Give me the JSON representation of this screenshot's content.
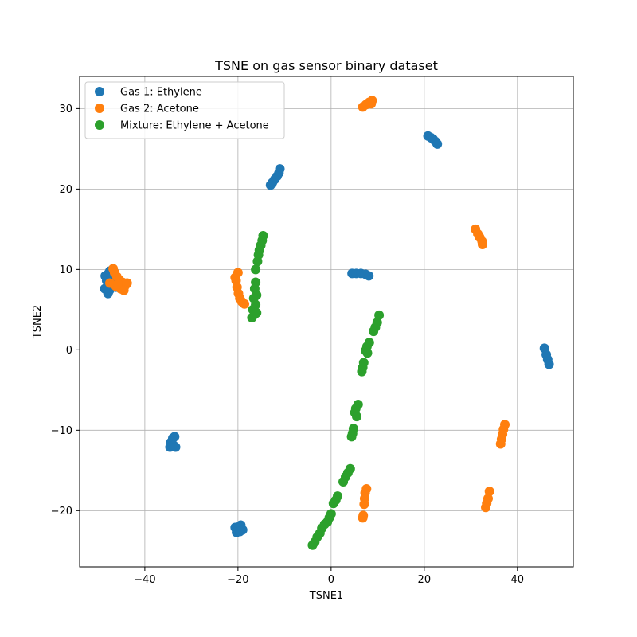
{
  "chart_data": {
    "type": "scatter",
    "title": "TSNE on gas sensor binary dataset",
    "xlabel": "TSNE1",
    "ylabel": "TSNE2",
    "xlim": [
      -54,
      52
    ],
    "ylim": [
      -27,
      34
    ],
    "xticks": [
      -40,
      -20,
      0,
      20,
      40
    ],
    "yticks": [
      -20,
      -10,
      0,
      10,
      20,
      30
    ],
    "grid": true,
    "legend_position": "top-left",
    "series": [
      {
        "name": "Gas 1: Ethylene",
        "color": "#1f77b4",
        "points": [
          [
            -48.5,
            9.2
          ],
          [
            -47.8,
            9.5
          ],
          [
            -47.5,
            9.8
          ],
          [
            -48.2,
            8.6
          ],
          [
            -48.0,
            8.0
          ],
          [
            -47.6,
            7.4
          ],
          [
            -47.9,
            7.0
          ],
          [
            -48.6,
            7.6
          ],
          [
            -46.8,
            8.2
          ],
          [
            -47.2,
            9.0
          ],
          [
            -46.5,
            9.6
          ],
          [
            -46.2,
            7.8
          ],
          [
            -11.0,
            22.5
          ],
          [
            -11.2,
            22.0
          ],
          [
            -11.6,
            21.6
          ],
          [
            -12.1,
            21.2
          ],
          [
            -12.6,
            20.8
          ],
          [
            -13.0,
            20.5
          ],
          [
            20.8,
            26.6
          ],
          [
            21.4,
            26.4
          ],
          [
            21.9,
            26.2
          ],
          [
            22.4,
            25.9
          ],
          [
            22.8,
            25.6
          ],
          [
            4.5,
            9.5
          ],
          [
            5.4,
            9.5
          ],
          [
            6.4,
            9.5
          ],
          [
            7.4,
            9.4
          ],
          [
            8.1,
            9.2
          ],
          [
            45.8,
            0.2
          ],
          [
            46.2,
            -0.6
          ],
          [
            46.5,
            -1.2
          ],
          [
            46.8,
            -1.8
          ],
          [
            -34.0,
            -11.0
          ],
          [
            -34.4,
            -11.5
          ],
          [
            -33.8,
            -11.9
          ],
          [
            -33.4,
            -12.1
          ],
          [
            -34.6,
            -12.1
          ],
          [
            -33.6,
            -10.8
          ],
          [
            -20.6,
            -22.1
          ],
          [
            -20.0,
            -22.4
          ],
          [
            -19.4,
            -21.8
          ],
          [
            -19.0,
            -22.4
          ],
          [
            -20.3,
            -22.7
          ],
          [
            -19.6,
            -22.6
          ]
        ]
      },
      {
        "name": "Gas 2: Acetone",
        "color": "#ff7f0e",
        "points": [
          [
            -46.8,
            10.1
          ],
          [
            -46.5,
            9.6
          ],
          [
            -46.0,
            9.1
          ],
          [
            -45.5,
            8.7
          ],
          [
            -44.8,
            8.4
          ],
          [
            -44.2,
            8.0
          ],
          [
            -43.8,
            8.3
          ],
          [
            -44.5,
            7.4
          ],
          [
            -45.2,
            7.6
          ],
          [
            -46.2,
            7.9
          ],
          [
            -47.5,
            8.3
          ],
          [
            -45.8,
            8.2
          ],
          [
            6.8,
            30.2
          ],
          [
            7.5,
            30.5
          ],
          [
            8.2,
            30.8
          ],
          [
            8.8,
            31.0
          ],
          [
            8.6,
            30.6
          ],
          [
            31.0,
            15.0
          ],
          [
            31.5,
            14.4
          ],
          [
            31.9,
            14.0
          ],
          [
            32.4,
            13.5
          ],
          [
            32.5,
            13.1
          ],
          [
            -20.0,
            9.6
          ],
          [
            -20.4,
            8.6
          ],
          [
            -20.2,
            7.8
          ],
          [
            -19.9,
            7.0
          ],
          [
            -19.6,
            6.4
          ],
          [
            -19.2,
            6.0
          ],
          [
            -18.6,
            5.7
          ],
          [
            -20.6,
            9.0
          ],
          [
            37.3,
            -9.3
          ],
          [
            37.0,
            -9.9
          ],
          [
            36.8,
            -10.5
          ],
          [
            36.6,
            -11.1
          ],
          [
            36.4,
            -11.7
          ],
          [
            7.6,
            -17.3
          ],
          [
            7.3,
            -17.8
          ],
          [
            7.2,
            -18.5
          ],
          [
            7.1,
            -19.2
          ],
          [
            6.9,
            -20.6
          ],
          [
            6.8,
            -20.9
          ],
          [
            34.0,
            -17.6
          ],
          [
            33.7,
            -18.5
          ],
          [
            33.4,
            -19.1
          ],
          [
            33.2,
            -19.6
          ]
        ]
      },
      {
        "name": "Mixture: Ethylene + Acetone",
        "color": "#2ca02c",
        "points": [
          [
            -14.6,
            14.2
          ],
          [
            -14.8,
            13.6
          ],
          [
            -15.1,
            13.0
          ],
          [
            -15.4,
            12.4
          ],
          [
            -15.6,
            11.8
          ],
          [
            -15.8,
            11.0
          ],
          [
            -16.2,
            10.0
          ],
          [
            -16.2,
            8.4
          ],
          [
            -16.4,
            7.6
          ],
          [
            -16.0,
            6.8
          ],
          [
            -16.6,
            6.4
          ],
          [
            -16.2,
            5.6
          ],
          [
            -16.8,
            5.0
          ],
          [
            -16.4,
            4.4
          ],
          [
            -17.0,
            4.0
          ],
          [
            -16.0,
            4.6
          ],
          [
            10.3,
            4.3
          ],
          [
            9.9,
            3.4
          ],
          [
            9.5,
            2.8
          ],
          [
            9.1,
            2.3
          ],
          [
            8.2,
            0.9
          ],
          [
            7.7,
            0.4
          ],
          [
            7.4,
            -0.1
          ],
          [
            7.8,
            -0.4
          ],
          [
            7.0,
            -1.6
          ],
          [
            6.8,
            -2.2
          ],
          [
            6.6,
            -2.7
          ],
          [
            5.8,
            -6.8
          ],
          [
            5.3,
            -7.3
          ],
          [
            5.1,
            -7.8
          ],
          [
            5.5,
            -8.3
          ],
          [
            4.8,
            -9.8
          ],
          [
            4.6,
            -10.4
          ],
          [
            4.4,
            -10.8
          ],
          [
            4.1,
            -14.8
          ],
          [
            3.6,
            -15.3
          ],
          [
            3.1,
            -15.8
          ],
          [
            2.6,
            -16.4
          ],
          [
            1.4,
            -18.2
          ],
          [
            1.0,
            -18.7
          ],
          [
            0.5,
            -19.1
          ],
          [
            0.0,
            -20.4
          ],
          [
            -0.4,
            -20.9
          ],
          [
            -0.8,
            -21.4
          ],
          [
            -1.4,
            -21.7
          ],
          [
            -2.0,
            -22.2
          ],
          [
            -2.4,
            -22.8
          ],
          [
            -3.0,
            -23.3
          ],
          [
            -3.5,
            -23.9
          ],
          [
            -4.0,
            -24.3
          ]
        ]
      }
    ]
  }
}
